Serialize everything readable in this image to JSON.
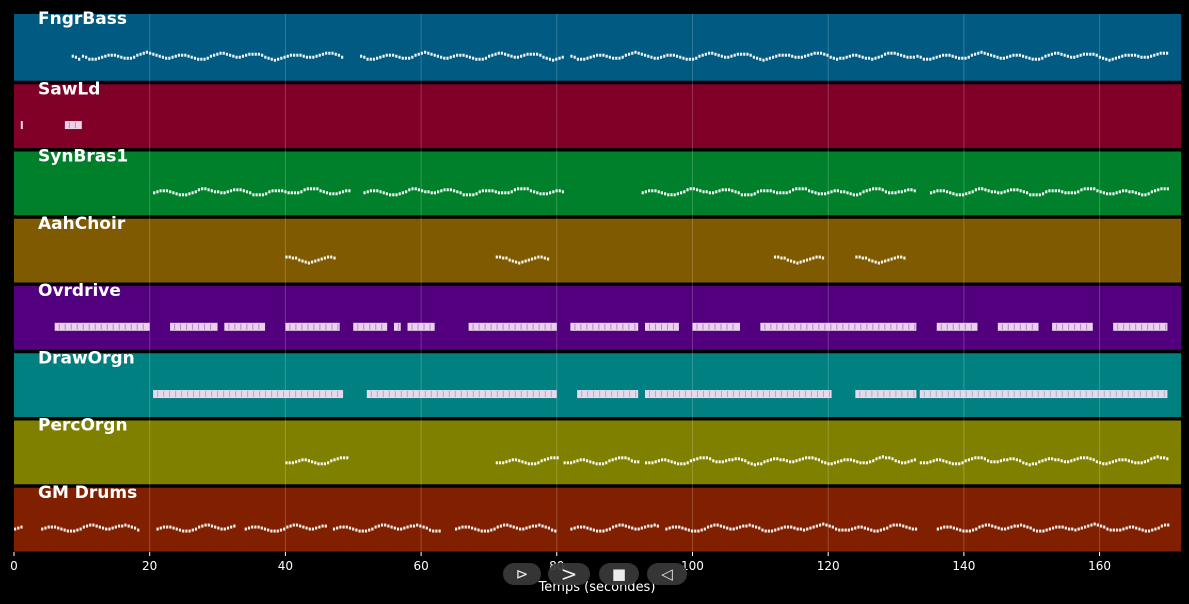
{
  "chart_data": {
    "type": "piano-roll",
    "xlabel": "Temps (secondes)",
    "xlim": [
      0,
      172
    ],
    "xticks": [
      0,
      20,
      40,
      60,
      80,
      100,
      120,
      140,
      160
    ],
    "grid": true,
    "tracks": [
      {
        "name": "FngrBass",
        "color": "#005a82",
        "style": "dense",
        "segments": [
          [
            8.5,
            9.5
          ],
          [
            10,
            48.5
          ],
          [
            51,
            81
          ],
          [
            82,
            132.5
          ],
          [
            133,
            170
          ]
        ]
      },
      {
        "name": "SawLd",
        "color": "#800028",
        "style": "block",
        "segments": [
          [
            1,
            1.3
          ],
          [
            7.5,
            10
          ]
        ]
      },
      {
        "name": "SynBras1",
        "color": "#00802a",
        "style": "dense",
        "segments": [
          [
            20.5,
            49.5
          ],
          [
            51.5,
            81
          ],
          [
            92.5,
            133
          ],
          [
            135,
            170
          ]
        ]
      },
      {
        "name": "AahChoir",
        "color": "#805a00",
        "style": "dense",
        "segments": [
          [
            40,
            47.5
          ],
          [
            71,
            79
          ],
          [
            112,
            119.5
          ],
          [
            124,
            131.5
          ]
        ]
      },
      {
        "name": "Ovrdrive",
        "color": "#52007d",
        "style": "block",
        "segments": [
          [
            6,
            20
          ],
          [
            23,
            30
          ],
          [
            31,
            37
          ],
          [
            40,
            48
          ],
          [
            50,
            55
          ],
          [
            56,
            57
          ],
          [
            58,
            62
          ],
          [
            67,
            80
          ],
          [
            82,
            92
          ],
          [
            93,
            98
          ],
          [
            100,
            107
          ],
          [
            110,
            133
          ],
          [
            136,
            142
          ],
          [
            145,
            151
          ],
          [
            153,
            159
          ],
          [
            162,
            170
          ]
        ]
      },
      {
        "name": "DrawOrgn",
        "color": "#008080",
        "style": "block",
        "segments": [
          [
            20.5,
            48.5
          ],
          [
            52,
            80
          ],
          [
            83,
            92
          ],
          [
            93,
            120.5
          ],
          [
            124,
            133
          ],
          [
            133.5,
            170
          ]
        ]
      },
      {
        "name": "PercOrgn",
        "color": "#808000",
        "style": "dense",
        "segments": [
          [
            40,
            49
          ],
          [
            71,
            80
          ],
          [
            81,
            92
          ],
          [
            93,
            133
          ],
          [
            133.5,
            170
          ]
        ]
      },
      {
        "name": "GM Drums",
        "color": "#802000",
        "style": "dense",
        "segments": [
          [
            0,
            1
          ],
          [
            4,
            18.5
          ],
          [
            21,
            32.5
          ],
          [
            34,
            46
          ],
          [
            47,
            63
          ],
          [
            65,
            80
          ],
          [
            82,
            95
          ],
          [
            96,
            133
          ],
          [
            136,
            170
          ]
        ]
      }
    ]
  },
  "transport": {
    "btn1_label": "⊳",
    "btn2_label": ">",
    "btn3_label": "■",
    "btn4_label": "◁"
  }
}
